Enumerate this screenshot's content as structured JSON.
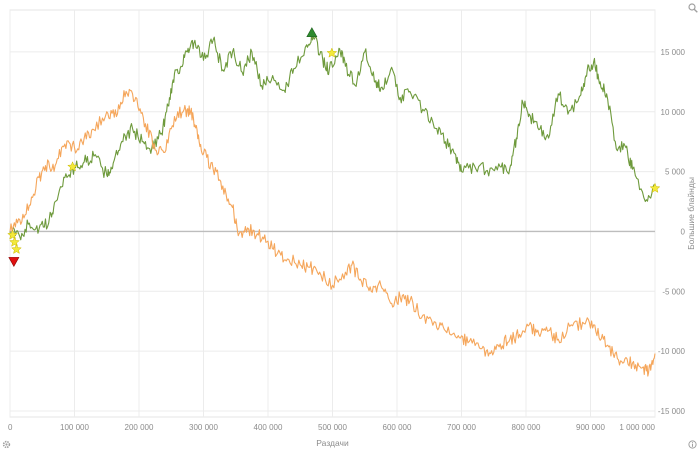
{
  "chart_data": {
    "type": "line",
    "xlabel": "Раздачи",
    "ylabel": "Большие блайнды",
    "xlim": [
      0,
      1000000
    ],
    "ylim": [
      -15500,
      18500
    ],
    "x_ticks": [
      0,
      100000,
      200000,
      300000,
      400000,
      500000,
      600000,
      700000,
      800000,
      900000,
      1000000
    ],
    "x_tick_labels": [
      "0",
      "100 000",
      "200 000",
      "300 000",
      "400 000",
      "500 000",
      "600 000",
      "700 000",
      "800 000",
      "900 000",
      "1 000 000"
    ],
    "y_ticks": [
      15000,
      10000,
      5000,
      0,
      -5000,
      -10000,
      -15000
    ],
    "y_tick_labels": [
      "15 000",
      "10 000",
      "5 000",
      "0",
      "-5 000",
      "-10 000",
      "-15 000"
    ],
    "grid": true,
    "series": [
      {
        "color": "#6e9a3c",
        "points": [
          [
            0,
            0
          ],
          [
            15000,
            -400
          ],
          [
            30000,
            700
          ],
          [
            45000,
            200
          ],
          [
            60000,
            700
          ],
          [
            70000,
            2500
          ],
          [
            85000,
            4500
          ],
          [
            100000,
            5300
          ],
          [
            115000,
            5800
          ],
          [
            130000,
            6300
          ],
          [
            150000,
            4700
          ],
          [
            160000,
            5700
          ],
          [
            175000,
            7500
          ],
          [
            190000,
            8600
          ],
          [
            205000,
            7500
          ],
          [
            220000,
            7000
          ],
          [
            235000,
            8200
          ],
          [
            245000,
            10500
          ],
          [
            255000,
            13200
          ],
          [
            265000,
            13800
          ],
          [
            275000,
            15000
          ],
          [
            285000,
            15700
          ],
          [
            300000,
            14300
          ],
          [
            315000,
            16000
          ],
          [
            330000,
            13500
          ],
          [
            345000,
            15000
          ],
          [
            360000,
            13300
          ],
          [
            375000,
            15000
          ],
          [
            390000,
            12200
          ],
          [
            405000,
            12600
          ],
          [
            425000,
            11800
          ],
          [
            440000,
            13600
          ],
          [
            460000,
            15600
          ],
          [
            470000,
            16300
          ],
          [
            485000,
            14300
          ],
          [
            495000,
            13500
          ],
          [
            510000,
            15300
          ],
          [
            520000,
            13800
          ],
          [
            535000,
            12200
          ],
          [
            550000,
            15000
          ],
          [
            565000,
            12500
          ],
          [
            575000,
            12000
          ],
          [
            590000,
            13500
          ],
          [
            605000,
            11200
          ],
          [
            620000,
            11700
          ],
          [
            640000,
            10200
          ],
          [
            660000,
            8600
          ],
          [
            675000,
            7500
          ],
          [
            690000,
            6500
          ],
          [
            700000,
            5000
          ],
          [
            720000,
            5500
          ],
          [
            740000,
            5100
          ],
          [
            760000,
            5400
          ],
          [
            775000,
            5300
          ],
          [
            785000,
            7800
          ],
          [
            795000,
            10800
          ],
          [
            805000,
            9800
          ],
          [
            820000,
            8500
          ],
          [
            835000,
            7800
          ],
          [
            850000,
            11500
          ],
          [
            865000,
            9800
          ],
          [
            885000,
            11400
          ],
          [
            895000,
            13500
          ],
          [
            905000,
            14200
          ],
          [
            915000,
            12500
          ],
          [
            925000,
            11500
          ],
          [
            940000,
            6900
          ],
          [
            955000,
            7000
          ],
          [
            965000,
            5200
          ],
          [
            985000,
            2500
          ],
          [
            1000000,
            3800
          ]
        ]
      },
      {
        "color": "#f5a65b",
        "points": [
          [
            0,
            0
          ],
          [
            15000,
            1000
          ],
          [
            30000,
            2200
          ],
          [
            45000,
            4500
          ],
          [
            55000,
            5500
          ],
          [
            70000,
            5500
          ],
          [
            85000,
            7300
          ],
          [
            100000,
            7000
          ],
          [
            115000,
            7800
          ],
          [
            130000,
            8500
          ],
          [
            150000,
            10000
          ],
          [
            165000,
            9600
          ],
          [
            180000,
            11700
          ],
          [
            195000,
            11200
          ],
          [
            210000,
            9000
          ],
          [
            225000,
            6800
          ],
          [
            240000,
            6600
          ],
          [
            255000,
            9600
          ],
          [
            270000,
            10200
          ],
          [
            280000,
            10000
          ],
          [
            290000,
            8500
          ],
          [
            300000,
            6500
          ],
          [
            315000,
            5200
          ],
          [
            330000,
            3800
          ],
          [
            345000,
            2000
          ],
          [
            355000,
            -200
          ],
          [
            370000,
            200
          ],
          [
            385000,
            -300
          ],
          [
            400000,
            -800
          ],
          [
            415000,
            -1800
          ],
          [
            430000,
            -2300
          ],
          [
            450000,
            -2800
          ],
          [
            465000,
            -3000
          ],
          [
            480000,
            -3400
          ],
          [
            500000,
            -4500
          ],
          [
            520000,
            -3400
          ],
          [
            530000,
            -2800
          ],
          [
            545000,
            -4200
          ],
          [
            560000,
            -5000
          ],
          [
            575000,
            -4500
          ],
          [
            590000,
            -6000
          ],
          [
            605000,
            -5500
          ],
          [
            620000,
            -5800
          ],
          [
            640000,
            -7000
          ],
          [
            660000,
            -7600
          ],
          [
            675000,
            -8300
          ],
          [
            695000,
            -8700
          ],
          [
            710000,
            -9300
          ],
          [
            730000,
            -9800
          ],
          [
            745000,
            -10200
          ],
          [
            760000,
            -9400
          ],
          [
            775000,
            -9000
          ],
          [
            790000,
            -8600
          ],
          [
            805000,
            -7800
          ],
          [
            820000,
            -8600
          ],
          [
            835000,
            -8300
          ],
          [
            850000,
            -9000
          ],
          [
            870000,
            -7800
          ],
          [
            890000,
            -7700
          ],
          [
            905000,
            -7800
          ],
          [
            920000,
            -9000
          ],
          [
            935000,
            -10200
          ],
          [
            950000,
            -11000
          ],
          [
            965000,
            -11000
          ],
          [
            980000,
            -11400
          ],
          [
            990000,
            -11800
          ],
          [
            1000000,
            -10200
          ]
        ]
      }
    ],
    "markers": [
      {
        "symbol": "triangle-up",
        "color": "#2e8b2e",
        "x": 468000,
        "y": 16600
      },
      {
        "symbol": "triangle-down",
        "color": "#e01010",
        "x": 6000,
        "y": -2500
      },
      {
        "symbol": "star",
        "color": "#f3e93c",
        "x": 4000,
        "y": -300
      },
      {
        "symbol": "star",
        "color": "#f3e93c",
        "x": 7000,
        "y": -900
      },
      {
        "symbol": "star",
        "color": "#f3e93c",
        "x": 10000,
        "y": -1500
      },
      {
        "symbol": "star",
        "color": "#f3e93c",
        "x": 97000,
        "y": 5400
      },
      {
        "symbol": "star",
        "color": "#f3e93c",
        "x": 499000,
        "y": 14900
      },
      {
        "symbol": "star",
        "color": "#f3e93c",
        "x": 1000000,
        "y": 3600
      }
    ]
  },
  "icons": {
    "top_right": "magnifier-icon",
    "bottom_left": "gear-icon",
    "bottom_right": "info-icon"
  }
}
